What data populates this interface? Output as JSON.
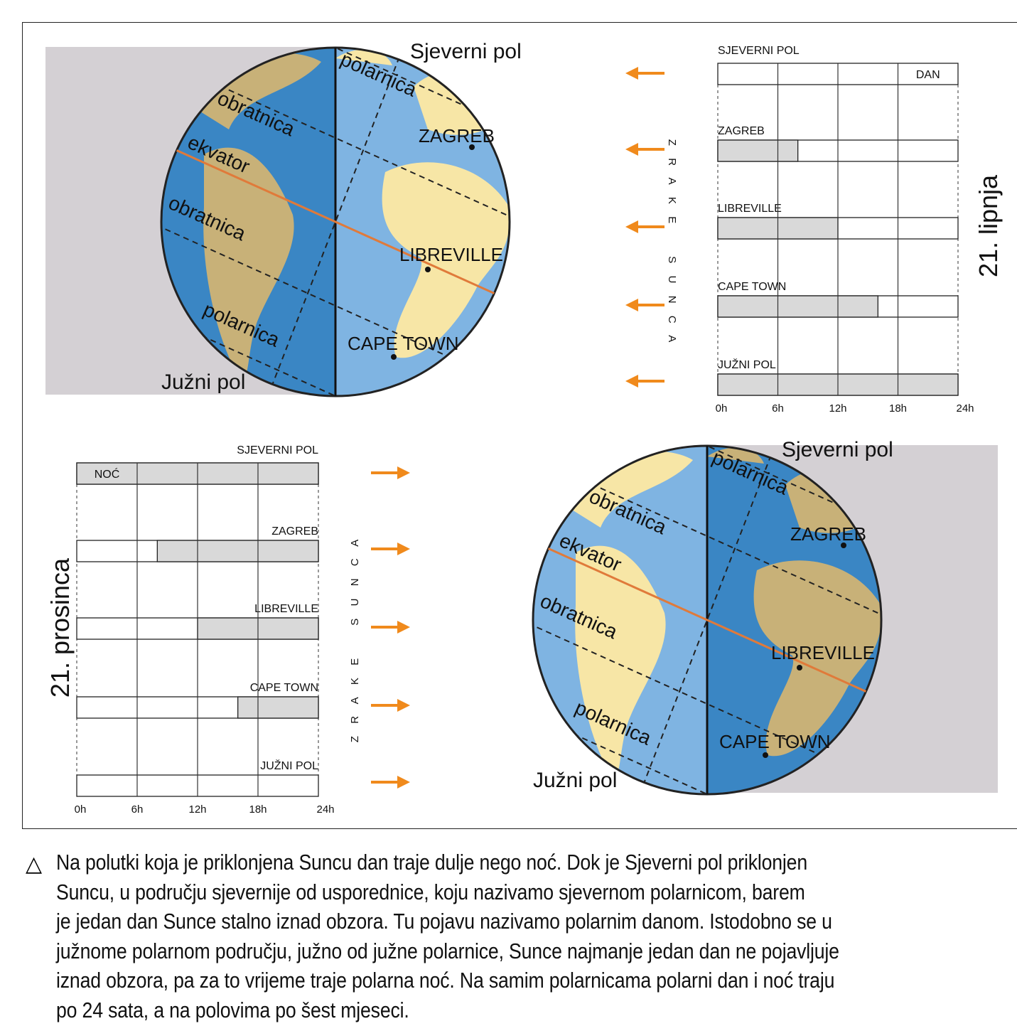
{
  "top_panel": {
    "date_label": "21. lipnja",
    "rays_label": "Z R A K E   S U N C A",
    "globe": {
      "north_pole": "Sjeverni pol",
      "south_pole": "Južni pol",
      "polar_top": "polarnica",
      "tropic_top": "obratnica",
      "equator": "ekvator",
      "tropic_bottom": "obratnica",
      "polar_bottom": "polarnica",
      "zagreb": "ZAGREB",
      "libreville": "LIBREVILLE",
      "cape_town": "CAPE TOWN"
    },
    "arrow_direction": "left"
  },
  "bottom_panel": {
    "date_label": "21. prosinca",
    "rays_label": "Z R A K E   S U N C A",
    "globe": {
      "north_pole": "Sjeverni pol",
      "south_pole": "Južni pol",
      "polar_top": "polarnica",
      "tropic_top": "obratnica",
      "equator": "ekvator",
      "tropic_bottom": "obratnica",
      "polar_bottom": "polarnica",
      "zagreb": "ZAGREB",
      "libreville": "LIBREVILLE",
      "cape_town": "CAPE TOWN"
    },
    "arrow_direction": "right"
  },
  "colors": {
    "night_fill": "#d9d9d9",
    "day_fill": "#ffffff",
    "arrow": "#f08a1c",
    "equator": "#e07a3a",
    "ocean_light": "#7fb4e2",
    "ocean_dark": "#3a86c4",
    "land_light": "#f7e6a6",
    "land_dark": "#c8b178",
    "shadow": "#d4d0d4"
  },
  "chart_data": [
    {
      "type": "bar",
      "title": "21. lipnja",
      "x_ticks": [
        "0h",
        "6h",
        "12h",
        "18h",
        "24h"
      ],
      "xlim": [
        0,
        24
      ],
      "bar_label": "DAN",
      "rows": [
        {
          "label": "SJEVERNI  POL",
          "night_hours": 0
        },
        {
          "label": "ZAGREB",
          "night_hours": 8
        },
        {
          "label": "LIBREVILLE",
          "night_hours": 12
        },
        {
          "label": "CAPE TOWN",
          "night_hours": 16
        },
        {
          "label": "JUŽNI  POL",
          "night_hours": 24
        }
      ],
      "night_position": "start"
    },
    {
      "type": "bar",
      "title": "21. prosinca",
      "x_ticks": [
        "0h",
        "6h",
        "12h",
        "18h",
        "24h"
      ],
      "xlim": [
        0,
        24
      ],
      "bar_label": "NOĆ",
      "rows": [
        {
          "label": "SJEVERNI  POL",
          "night_hours": 24
        },
        {
          "label": "ZAGREB",
          "night_hours": 16
        },
        {
          "label": "LIBREVILLE",
          "night_hours": 12
        },
        {
          "label": "CAPE TOWN",
          "night_hours": 8
        },
        {
          "label": "JUŽNI  POL",
          "night_hours": 0
        }
      ],
      "night_position": "end"
    }
  ],
  "caption": {
    "symbol": "△",
    "lines": [
      "Na polutki koja je priklonjena Suncu dan traje dulje nego noć. Dok je Sjeverni pol priklonjen",
      "Suncu, u području sjevernije od usporednice, koju nazivamo sjevernom polarnicom, barem",
      "je jedan dan Sunce stalno iznad obzora. Tu pojavu nazivamo polarnim danom. Istodobno se u",
      "južnome polarnom području, južno od južne polarnice, Sunce najmanje jedan dan ne pojavljuje",
      "iznad obzora, pa za to vrijeme traje polarna noć. Na samim polarnicama polarni dan i noć traju",
      "po 24 sata, a na polovima po šest mjeseci."
    ]
  }
}
